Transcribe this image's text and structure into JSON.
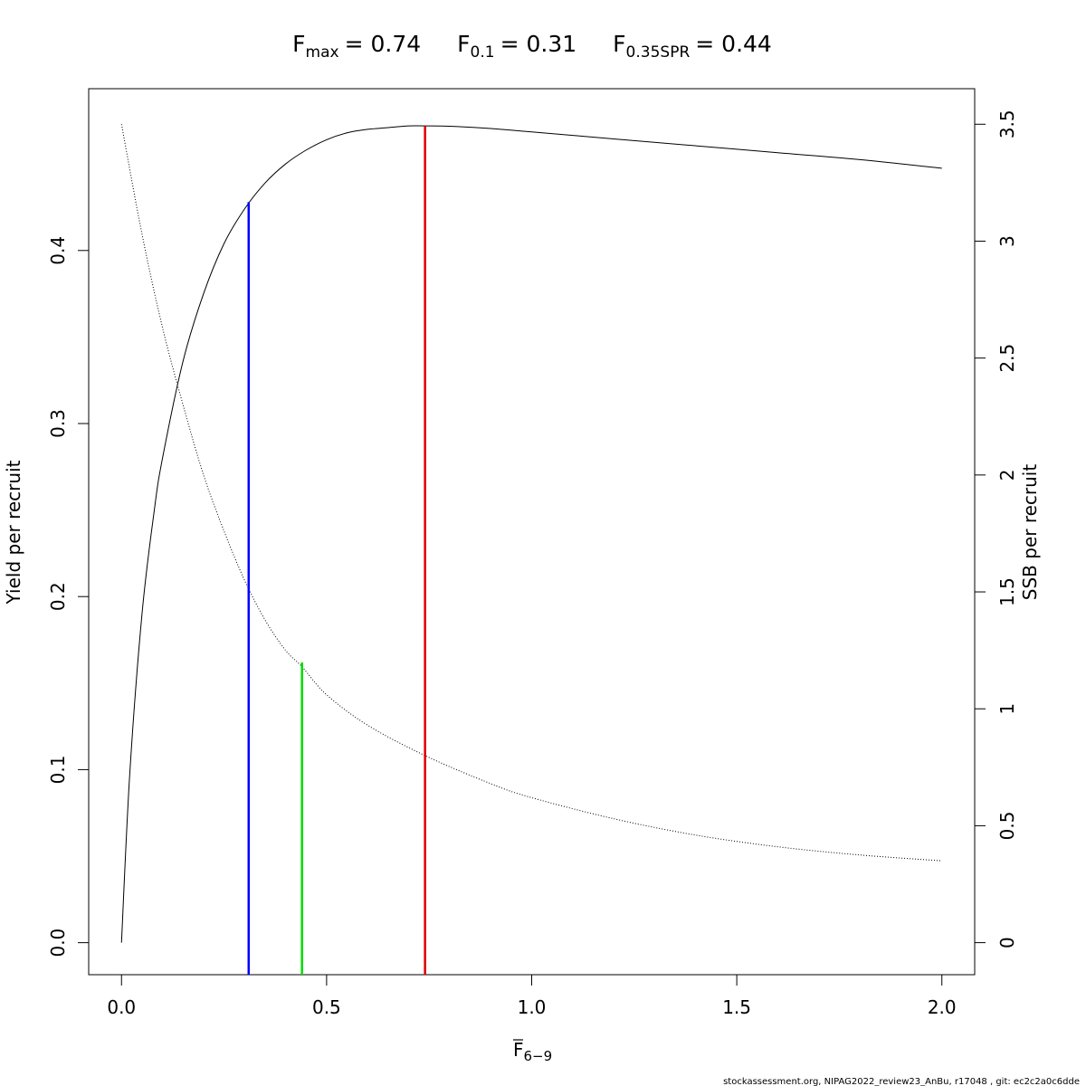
{
  "chart_data": {
    "type": "line",
    "title": {
      "fmax": {
        "base": "F",
        "sub": "max",
        "value": "= 0.74"
      },
      "f01": {
        "base": "F",
        "sub": "0.1",
        "value": "= 0.31"
      },
      "f035": {
        "base": "F",
        "sub": "0.35SPR",
        "value": "= 0.44"
      }
    },
    "xlabel": {
      "base": "F",
      "sub": "6−9"
    },
    "ylabel_left": "Yield per recruit",
    "ylabel_right": "SSB per recruit",
    "xlim": [
      -0.08,
      2.08
    ],
    "ylim_left": [
      -0.0185,
      0.4935
    ],
    "ylim_right": [
      -0.137,
      3.652
    ],
    "x_ticks": [
      "0.0",
      "0.5",
      "1.0",
      "1.5",
      "2.0"
    ],
    "x_tick_values": [
      0,
      0.5,
      1.0,
      1.5,
      2.0
    ],
    "y_left_ticks": [
      "0.0",
      "0.1",
      "0.2",
      "0.3",
      "0.4"
    ],
    "y_left_tick_values": [
      0,
      0.1,
      0.2,
      0.3,
      0.4
    ],
    "y_right_ticks": [
      "0",
      "0.5",
      "1",
      "1.5",
      "2",
      "2.5",
      "3",
      "3.5"
    ],
    "y_right_tick_values": [
      0,
      0.5,
      1,
      1.5,
      2,
      2.5,
      3,
      3.5
    ],
    "series": [
      {
        "axis": "left",
        "style": "solid",
        "color": "#000000",
        "x": [
          0,
          0.02,
          0.05,
          0.08,
          0.1,
          0.15,
          0.2,
          0.25,
          0.3,
          0.35,
          0.4,
          0.45,
          0.5,
          0.55,
          0.6,
          0.65,
          0.7,
          0.74,
          0.8,
          0.9,
          1.0,
          1.2,
          1.4,
          1.6,
          1.8,
          2.0
        ],
        "values": [
          0,
          0.097,
          0.19,
          0.25,
          0.28,
          0.336,
          0.375,
          0.404,
          0.424,
          0.439,
          0.45,
          0.458,
          0.464,
          0.468,
          0.47,
          0.471,
          0.472,
          0.472,
          0.4718,
          0.4705,
          0.4685,
          0.4645,
          0.4605,
          0.4565,
          0.4525,
          0.4475
        ]
      },
      {
        "axis": "right",
        "style": "dotted",
        "color": "#000000",
        "x": [
          0,
          0.05,
          0.1,
          0.15,
          0.2,
          0.25,
          0.3,
          0.35,
          0.4,
          0.44,
          0.5,
          0.6,
          0.74,
          0.9,
          1.0,
          1.2,
          1.4,
          1.6,
          1.8,
          2.0
        ],
        "values": [
          3.5,
          3.03,
          2.63,
          2.3,
          2.0,
          1.76,
          1.55,
          1.38,
          1.25,
          1.18,
          1.06,
          0.93,
          0.8,
          0.68,
          0.62,
          0.53,
          0.46,
          0.41,
          0.375,
          0.35
        ]
      }
    ],
    "reference_lines": [
      {
        "name": "F0.1",
        "x": 0.31,
        "y_top": 0.428,
        "color": "#0000ff"
      },
      {
        "name": "F0.35SPR",
        "x": 0.44,
        "y_top": 0.162,
        "color": "#00dd00"
      },
      {
        "name": "Fmax",
        "x": 0.74,
        "y_top": 0.472,
        "color": "#dd0000"
      }
    ]
  },
  "footer": "stockassessment.org, NIPAG2022_review23_AnBu, r17048 , git: ec2c2a0c6dde"
}
